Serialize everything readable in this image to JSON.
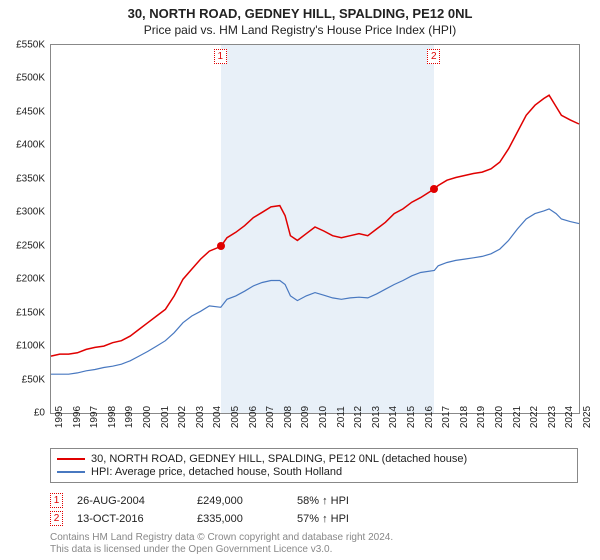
{
  "title": {
    "line1": "30, NORTH ROAD, GEDNEY HILL, SPALDING, PE12 0NL",
    "line2": "Price paid vs. HM Land Registry's House Price Index (HPI)"
  },
  "chart": {
    "type": "line",
    "background_color": "#ffffff",
    "shaded_color": "#e8f0f8",
    "border_color": "#888888",
    "x": {
      "min": 1995,
      "max": 2025,
      "ticks": [
        1995,
        1996,
        1997,
        1998,
        1999,
        2000,
        2001,
        2002,
        2003,
        2004,
        2005,
        2006,
        2007,
        2008,
        2009,
        2010,
        2011,
        2012,
        2013,
        2014,
        2015,
        2016,
        2017,
        2018,
        2019,
        2020,
        2021,
        2022,
        2023,
        2024,
        2025
      ],
      "fontsize": 10
    },
    "y": {
      "min": 0,
      "max": 550000,
      "ticks": [
        0,
        50000,
        100000,
        150000,
        200000,
        250000,
        300000,
        350000,
        400000,
        450000,
        500000,
        550000
      ],
      "labels": [
        "£0",
        "£50K",
        "£100K",
        "£150K",
        "£200K",
        "£250K",
        "£300K",
        "£350K",
        "£400K",
        "£450K",
        "£500K",
        "£550K"
      ],
      "fontsize": 10
    },
    "shaded_range": {
      "start": 2004.65,
      "end": 2016.78
    },
    "series": [
      {
        "name": "property",
        "color": "#e00000",
        "width": 1.5,
        "points": [
          [
            1995,
            85000
          ],
          [
            1995.5,
            88000
          ],
          [
            1996,
            88000
          ],
          [
            1996.5,
            90000
          ],
          [
            1997,
            95000
          ],
          [
            1997.5,
            98000
          ],
          [
            1998,
            100000
          ],
          [
            1998.5,
            105000
          ],
          [
            1999,
            108000
          ],
          [
            1999.5,
            115000
          ],
          [
            2000,
            125000
          ],
          [
            2000.5,
            135000
          ],
          [
            2001,
            145000
          ],
          [
            2001.5,
            155000
          ],
          [
            2002,
            175000
          ],
          [
            2002.5,
            200000
          ],
          [
            2003,
            215000
          ],
          [
            2003.5,
            230000
          ],
          [
            2004,
            242000
          ],
          [
            2004.65,
            249000
          ],
          [
            2005,
            262000
          ],
          [
            2005.5,
            270000
          ],
          [
            2006,
            280000
          ],
          [
            2006.5,
            292000
          ],
          [
            2007,
            300000
          ],
          [
            2007.5,
            308000
          ],
          [
            2008,
            310000
          ],
          [
            2008.3,
            295000
          ],
          [
            2008.6,
            265000
          ],
          [
            2009,
            258000
          ],
          [
            2009.5,
            268000
          ],
          [
            2010,
            278000
          ],
          [
            2010.5,
            272000
          ],
          [
            2011,
            265000
          ],
          [
            2011.5,
            262000
          ],
          [
            2012,
            265000
          ],
          [
            2012.5,
            268000
          ],
          [
            2013,
            265000
          ],
          [
            2013.5,
            275000
          ],
          [
            2014,
            285000
          ],
          [
            2014.5,
            298000
          ],
          [
            2015,
            305000
          ],
          [
            2015.5,
            315000
          ],
          [
            2016,
            322000
          ],
          [
            2016.78,
            335000
          ],
          [
            2017,
            340000
          ],
          [
            2017.5,
            348000
          ],
          [
            2018,
            352000
          ],
          [
            2018.5,
            355000
          ],
          [
            2019,
            358000
          ],
          [
            2019.5,
            360000
          ],
          [
            2020,
            365000
          ],
          [
            2020.5,
            375000
          ],
          [
            2021,
            395000
          ],
          [
            2021.5,
            420000
          ],
          [
            2022,
            445000
          ],
          [
            2022.5,
            460000
          ],
          [
            2023,
            470000
          ],
          [
            2023.3,
            475000
          ],
          [
            2023.7,
            458000
          ],
          [
            2024,
            445000
          ],
          [
            2024.5,
            438000
          ],
          [
            2025,
            432000
          ]
        ]
      },
      {
        "name": "hpi",
        "color": "#4878c0",
        "width": 1.2,
        "points": [
          [
            1995,
            58000
          ],
          [
            1995.5,
            58000
          ],
          [
            1996,
            58000
          ],
          [
            1996.5,
            60000
          ],
          [
            1997,
            63000
          ],
          [
            1997.5,
            65000
          ],
          [
            1998,
            68000
          ],
          [
            1998.5,
            70000
          ],
          [
            1999,
            73000
          ],
          [
            1999.5,
            78000
          ],
          [
            2000,
            85000
          ],
          [
            2000.5,
            92000
          ],
          [
            2001,
            100000
          ],
          [
            2001.5,
            108000
          ],
          [
            2002,
            120000
          ],
          [
            2002.5,
            135000
          ],
          [
            2003,
            145000
          ],
          [
            2003.5,
            152000
          ],
          [
            2004,
            160000
          ],
          [
            2004.65,
            158000
          ],
          [
            2005,
            170000
          ],
          [
            2005.5,
            175000
          ],
          [
            2006,
            182000
          ],
          [
            2006.5,
            190000
          ],
          [
            2007,
            195000
          ],
          [
            2007.5,
            198000
          ],
          [
            2008,
            198000
          ],
          [
            2008.3,
            192000
          ],
          [
            2008.6,
            175000
          ],
          [
            2009,
            168000
          ],
          [
            2009.5,
            175000
          ],
          [
            2010,
            180000
          ],
          [
            2010.5,
            176000
          ],
          [
            2011,
            172000
          ],
          [
            2011.5,
            170000
          ],
          [
            2012,
            172000
          ],
          [
            2012.5,
            173000
          ],
          [
            2013,
            172000
          ],
          [
            2013.5,
            178000
          ],
          [
            2014,
            185000
          ],
          [
            2014.5,
            192000
          ],
          [
            2015,
            198000
          ],
          [
            2015.5,
            205000
          ],
          [
            2016,
            210000
          ],
          [
            2016.78,
            213000
          ],
          [
            2017,
            220000
          ],
          [
            2017.5,
            225000
          ],
          [
            2018,
            228000
          ],
          [
            2018.5,
            230000
          ],
          [
            2019,
            232000
          ],
          [
            2019.5,
            234000
          ],
          [
            2020,
            238000
          ],
          [
            2020.5,
            245000
          ],
          [
            2021,
            258000
          ],
          [
            2021.5,
            275000
          ],
          [
            2022,
            290000
          ],
          [
            2022.5,
            298000
          ],
          [
            2023,
            302000
          ],
          [
            2023.3,
            305000
          ],
          [
            2023.7,
            298000
          ],
          [
            2024,
            290000
          ],
          [
            2024.5,
            286000
          ],
          [
            2025,
            283000
          ]
        ]
      }
    ],
    "sale_markers": [
      {
        "n": "1",
        "x": 2004.65,
        "y": 249000,
        "color": "#e00000"
      },
      {
        "n": "2",
        "x": 2016.78,
        "y": 335000,
        "color": "#e00000"
      }
    ]
  },
  "legend": {
    "items": [
      {
        "color": "#e00000",
        "label": "30, NORTH ROAD, GEDNEY HILL, SPALDING, PE12 0NL (detached house)"
      },
      {
        "color": "#4878c0",
        "label": "HPI: Average price, detached house, South Holland"
      }
    ]
  },
  "sales": [
    {
      "n": "1",
      "date": "26-AUG-2004",
      "price": "£249,000",
      "hpi": "58% ↑ HPI"
    },
    {
      "n": "2",
      "date": "13-OCT-2016",
      "price": "£335,000",
      "hpi": "57% ↑ HPI"
    }
  ],
  "footer": {
    "line1": "Contains HM Land Registry data © Crown copyright and database right 2024.",
    "line2": "This data is licensed under the Open Government Licence v3.0."
  }
}
